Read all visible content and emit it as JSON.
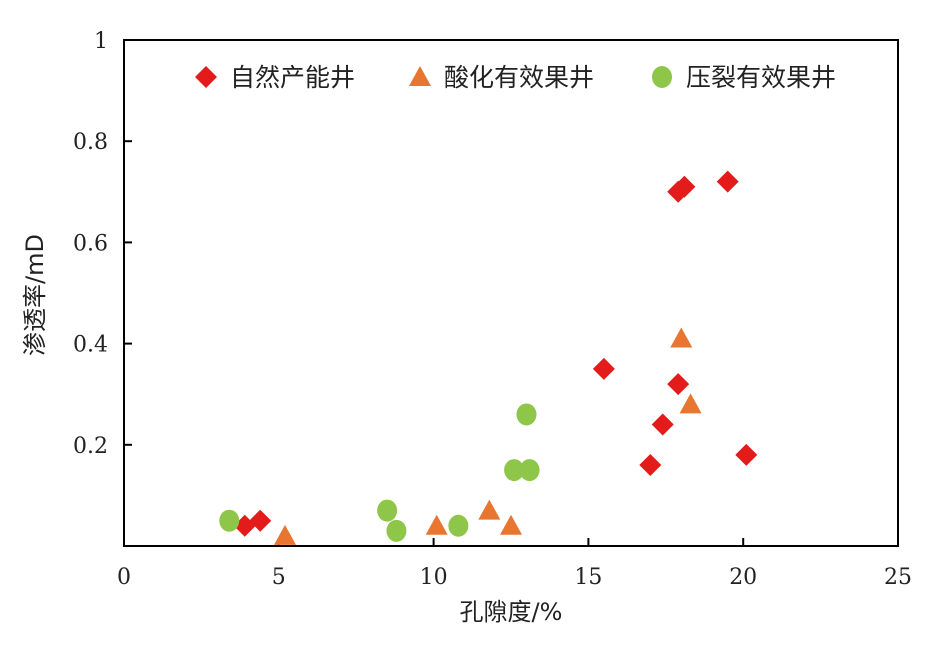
{
  "chart_data": {
    "type": "scatter",
    "title": "",
    "xlabel": "孔隙度/%",
    "ylabel": "渗透率/mD",
    "xlim": [
      0,
      25
    ],
    "ylim": [
      0,
      1
    ],
    "xticks": [
      0,
      5,
      10,
      15,
      20,
      25
    ],
    "xtick_labels": [
      "0",
      "5",
      "10",
      "15",
      "20",
      "25"
    ],
    "yticks": [
      0.2,
      0.4,
      0.6,
      0.8,
      1
    ],
    "ytick_labels": [
      "0.2",
      "0.4",
      "0.6",
      "0.8",
      "1"
    ],
    "grid": false,
    "legend_position": "top",
    "series": [
      {
        "name": "自然产能井",
        "marker": "diamond",
        "color": "#e31b1b",
        "points": [
          {
            "x": 3.9,
            "y": 0.04
          },
          {
            "x": 4.4,
            "y": 0.05
          },
          {
            "x": 15.5,
            "y": 0.35
          },
          {
            "x": 17.0,
            "y": 0.16
          },
          {
            "x": 17.4,
            "y": 0.24
          },
          {
            "x": 17.9,
            "y": 0.32
          },
          {
            "x": 17.9,
            "y": 0.7
          },
          {
            "x": 18.1,
            "y": 0.71
          },
          {
            "x": 19.5,
            "y": 0.72
          },
          {
            "x": 20.1,
            "y": 0.18
          }
        ]
      },
      {
        "name": "酸化有效果井",
        "marker": "triangle",
        "color": "#e87630",
        "points": [
          {
            "x": 5.2,
            "y": 0.02
          },
          {
            "x": 10.1,
            "y": 0.04
          },
          {
            "x": 11.8,
            "y": 0.07
          },
          {
            "x": 12.5,
            "y": 0.04
          },
          {
            "x": 18.0,
            "y": 0.41
          },
          {
            "x": 18.3,
            "y": 0.28
          }
        ]
      },
      {
        "name": "压裂有效果井",
        "marker": "circle",
        "color": "#8ec64a",
        "points": [
          {
            "x": 3.4,
            "y": 0.05
          },
          {
            "x": 8.5,
            "y": 0.07
          },
          {
            "x": 8.8,
            "y": 0.03
          },
          {
            "x": 10.8,
            "y": 0.04
          },
          {
            "x": 12.6,
            "y": 0.15
          },
          {
            "x": 13.1,
            "y": 0.15
          },
          {
            "x": 13.0,
            "y": 0.26
          }
        ]
      }
    ]
  }
}
